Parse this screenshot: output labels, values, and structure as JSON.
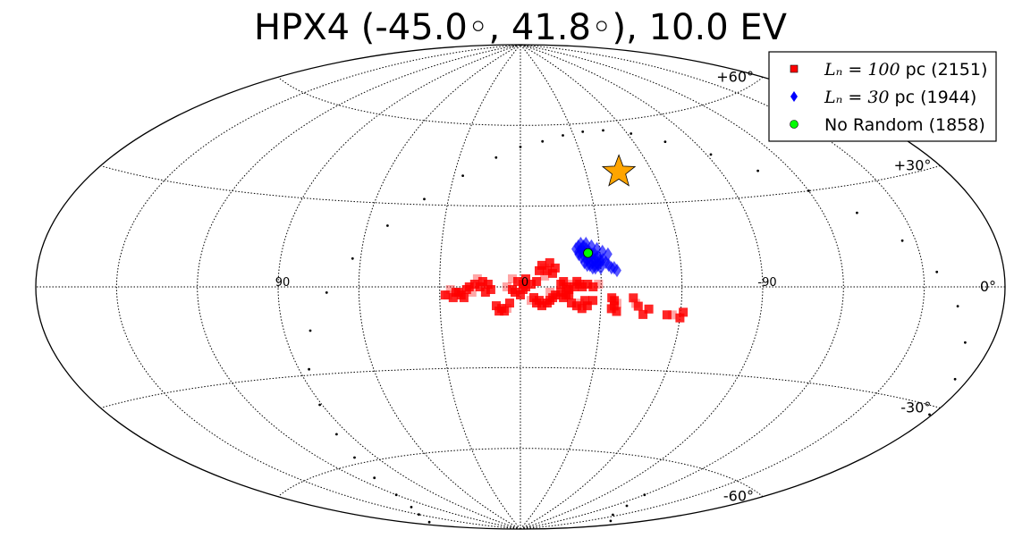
{
  "chart_data": {
    "type": "scatter",
    "projection": "aitoff",
    "title": "HPX4 (-45.0◦, 41.8◦), 10.0 EV",
    "lat_ticks": [
      {
        "lat": 60,
        "label": "+60°"
      },
      {
        "lat": 30,
        "label": "+30°"
      },
      {
        "lat": 0,
        "label": "0°"
      },
      {
        "lat": -30,
        "label": "-30°"
      },
      {
        "lat": -60,
        "label": "-60°"
      }
    ],
    "lon_ticks": [
      {
        "lon": 90,
        "label": "90"
      },
      {
        "lon": 0,
        "label": "0"
      },
      {
        "lon": -90,
        "label": "-90"
      }
    ],
    "grid": true,
    "legend_position": "top-right",
    "legend": [
      {
        "math": "Lₙ = 100",
        "text": " pc (2151)",
        "marker": "square",
        "color": "#ff0000"
      },
      {
        "math": "Lₙ = 30",
        "text": " pc (1944)",
        "marker": "diamond",
        "color": "#0000ff"
      },
      {
        "math": "",
        "text": "No Random (1858)",
        "marker": "circle",
        "color": "#00ff00"
      }
    ],
    "source": {
      "lon": -45.0,
      "lat": 41.8,
      "marker": "star",
      "color": "#ffa500"
    },
    "series": [
      {
        "name": "Lc = 100 pc (2151)",
        "marker": "square",
        "color": "#ff0000",
        "points": [
          [
            -9,
            7
          ],
          [
            -10,
            6
          ],
          [
            -8,
            8
          ],
          [
            -12,
            5
          ],
          [
            -11,
            9
          ],
          [
            -9,
            4
          ],
          [
            -7,
            6
          ],
          [
            -13,
            7
          ],
          [
            -15,
            1
          ],
          [
            -17,
            0
          ],
          [
            -19,
            1
          ],
          [
            -21,
            2
          ],
          [
            -23,
            0
          ],
          [
            -25,
            1
          ],
          [
            -27,
            0
          ],
          [
            -29,
            1
          ],
          [
            -16,
            2
          ],
          [
            -18,
            -1
          ],
          [
            -20,
            0
          ],
          [
            -22,
            1
          ],
          [
            -11,
            -2
          ],
          [
            -13,
            -3
          ],
          [
            -15,
            -2
          ],
          [
            -17,
            -3
          ],
          [
            -12,
            -4
          ],
          [
            -14,
            -3
          ],
          [
            -16,
            -4
          ],
          [
            -18,
            -3
          ],
          [
            -5,
            -4
          ],
          [
            -7,
            -5
          ],
          [
            -9,
            -6
          ],
          [
            -11,
            -5
          ],
          [
            -6,
            -6
          ],
          [
            -8,
            -7
          ],
          [
            -10,
            -6
          ],
          [
            -4,
            -5
          ],
          [
            -19,
            -6
          ],
          [
            -21,
            -7
          ],
          [
            -23,
            -8
          ],
          [
            -25,
            -7
          ],
          [
            -22,
            -6
          ],
          [
            -24,
            -5
          ],
          [
            -27,
            -5
          ],
          [
            -34,
            -4
          ],
          [
            -35,
            -5
          ],
          [
            -36,
            -6
          ],
          [
            -35,
            -7
          ],
          [
            -34,
            -8
          ],
          [
            -36,
            -9
          ],
          [
            -42,
            -4
          ],
          [
            -43,
            -6
          ],
          [
            -44,
            -7
          ],
          [
            -46,
            -10
          ],
          [
            -48,
            -8
          ],
          [
            -55,
            -10
          ],
          [
            -57,
            -10
          ],
          [
            -60,
            -11
          ],
          [
            -61,
            -9
          ],
          [
            12,
            1
          ],
          [
            14,
            2
          ],
          [
            16,
            3
          ],
          [
            11,
            -1
          ],
          [
            13,
            -2
          ],
          [
            15,
            0
          ],
          [
            17,
            1
          ],
          [
            18,
            -2
          ],
          [
            19,
            0
          ],
          [
            20,
            -1
          ],
          [
            22,
            -3
          ],
          [
            24,
            -2
          ],
          [
            26,
            -1
          ],
          [
            28,
            -3
          ],
          [
            21,
            -4
          ],
          [
            23,
            -2
          ],
          [
            25,
            -4
          ],
          [
            27,
            -3
          ],
          [
            7,
            -8
          ],
          [
            8,
            -9
          ],
          [
            9,
            -7
          ],
          [
            6,
            -9
          ],
          [
            5,
            -8
          ],
          [
            4,
            -6
          ],
          [
            -1,
            1
          ],
          [
            1,
            2
          ],
          [
            3,
            -1
          ],
          [
            5,
            0
          ],
          [
            0,
            -3
          ],
          [
            2,
            -2
          ],
          [
            -2,
            3
          ],
          [
            -1,
            -1
          ],
          [
            3,
            3
          ],
          [
            -4,
            1
          ],
          [
            -2,
            0
          ],
          [
            -6,
            2
          ]
        ]
      },
      {
        "name": "Lc = 30 pc (1944)",
        "marker": "diamond",
        "color": "#0000ff",
        "points": [
          [
            -22,
            15
          ],
          [
            -23,
            14
          ],
          [
            -24,
            15
          ],
          [
            -25,
            14
          ],
          [
            -26,
            13
          ],
          [
            -27,
            12
          ],
          [
            -28,
            12
          ],
          [
            -29,
            11
          ],
          [
            -30,
            10
          ],
          [
            -31,
            10
          ],
          [
            -32,
            9
          ],
          [
            -21,
            14
          ],
          [
            -22,
            13
          ],
          [
            -23,
            13
          ],
          [
            -24,
            13
          ],
          [
            -25,
            12
          ],
          [
            -26,
            11
          ],
          [
            -27,
            11
          ],
          [
            -28,
            10
          ],
          [
            -29,
            9
          ],
          [
            -30,
            9
          ],
          [
            -22,
            12
          ],
          [
            -23,
            11
          ],
          [
            -24,
            11
          ],
          [
            -25,
            10
          ],
          [
            -26,
            9
          ],
          [
            -27,
            9
          ],
          [
            -28,
            8
          ],
          [
            -29,
            8
          ],
          [
            -24,
            9
          ],
          [
            -25,
            8
          ],
          [
            -26,
            8
          ],
          [
            -27,
            7
          ],
          [
            -28,
            7
          ],
          [
            -30,
            7
          ],
          [
            -33,
            8
          ],
          [
            -34,
            7
          ],
          [
            -35,
            7
          ],
          [
            -36,
            6
          ],
          [
            -23,
            16
          ],
          [
            -25,
            16
          ],
          [
            -27,
            15
          ],
          [
            -29,
            14
          ],
          [
            -31,
            13
          ],
          [
            -33,
            12
          ]
        ]
      },
      {
        "name": "No Random (1858)",
        "marker": "circle",
        "color": "#00ff00",
        "points": [
          [
            -25.5,
            12.5
          ]
        ]
      }
    ],
    "dotted_curve": [
      [
        -120,
        -71
      ],
      [
        -130,
        -75
      ],
      [
        -145,
        -78
      ],
      [
        -165,
        -79
      ],
      [
        170,
        -79
      ],
      [
        150,
        -77
      ],
      [
        135,
        -75
      ],
      [
        120,
        -71
      ],
      [
        110,
        -65
      ],
      [
        102,
        -58
      ],
      [
        96,
        -50
      ],
      [
        91,
        -40
      ],
      [
        86,
        -28
      ],
      [
        80,
        -15
      ],
      [
        72,
        -2
      ],
      [
        63,
        10
      ],
      [
        52,
        22
      ],
      [
        40,
        32
      ],
      [
        26,
        41
      ],
      [
        12,
        48
      ],
      [
        0,
        52
      ],
      [
        -12,
        54
      ],
      [
        -24,
        56
      ],
      [
        -36,
        57
      ],
      [
        -48,
        57
      ],
      [
        -62,
        55
      ],
      [
        -76,
        51
      ],
      [
        -92,
        45
      ],
      [
        -106,
        38
      ],
      [
        -120,
        30
      ],
      [
        -133,
        22
      ],
      [
        -145,
        13
      ],
      [
        -155,
        4
      ],
      [
        -163,
        -5
      ],
      [
        -170,
        -14
      ],
      [
        -175,
        -23
      ],
      [
        -179,
        -32
      ]
    ]
  }
}
